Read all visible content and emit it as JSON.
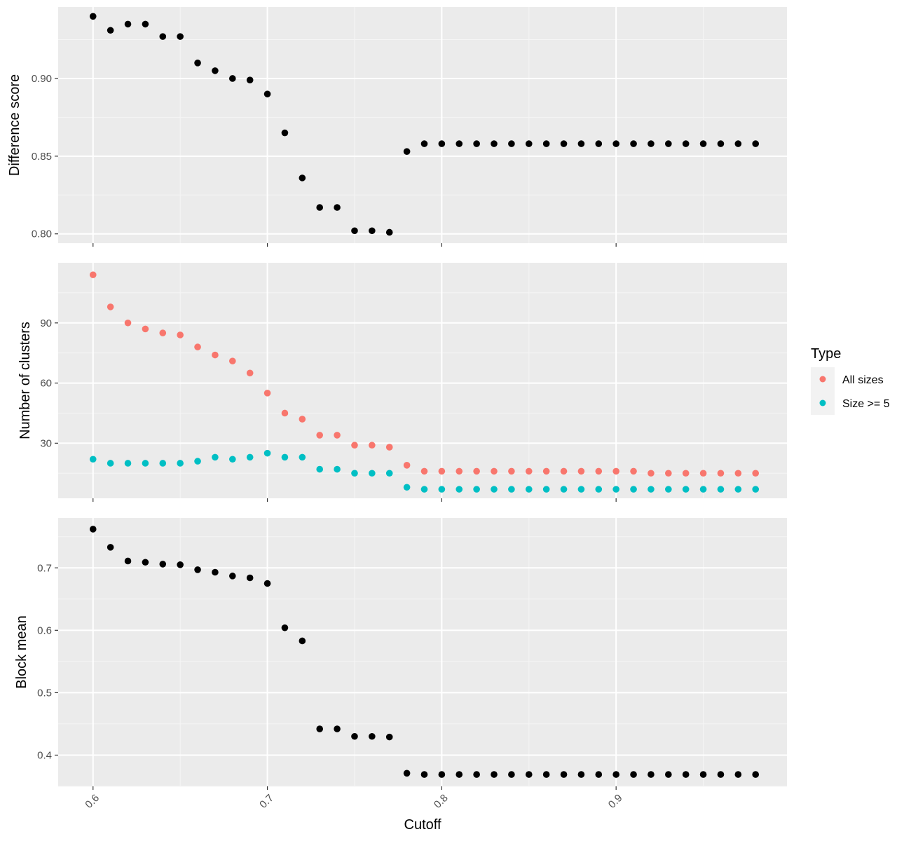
{
  "colors": {
    "panel_bg": "#EBEBEB",
    "grid_major": "#FFFFFF",
    "grid_minor": "#F5F5F5",
    "tick": "#333333",
    "all_sizes": "#F8766D",
    "size_ge5": "#00BFC4",
    "points": "#000000",
    "legend_key_bg": "#F2F2F2"
  },
  "legend": {
    "title": "Type",
    "placement": "right",
    "items": [
      {
        "label": "All sizes",
        "color": "#F8766D"
      },
      {
        "label": "Size >= 5",
        "color": "#00BFC4"
      }
    ]
  },
  "chart_data": [
    {
      "type": "scatter",
      "panel": "top",
      "xlabel": "",
      "ylabel": "Difference score",
      "xlim": [
        0.58,
        0.998
      ],
      "ylim": [
        0.794,
        0.946
      ],
      "yticks": [
        0.8,
        0.85,
        0.9
      ],
      "ytick_labels": [
        "0.80",
        "0.85",
        "0.90"
      ],
      "grid": true,
      "x": [
        0.6,
        0.61,
        0.62,
        0.63,
        0.64,
        0.65,
        0.66,
        0.67,
        0.68,
        0.69,
        0.7,
        0.71,
        0.72,
        0.73,
        0.74,
        0.75,
        0.76,
        0.77,
        0.78,
        0.79,
        0.8,
        0.81,
        0.82,
        0.83,
        0.84,
        0.85,
        0.86,
        0.87,
        0.88,
        0.89,
        0.9,
        0.91,
        0.92,
        0.93,
        0.94,
        0.95,
        0.96,
        0.97,
        0.98
      ],
      "series": [
        {
          "color": "#000000",
          "values": [
            0.94,
            0.931,
            0.935,
            0.935,
            0.927,
            0.927,
            0.91,
            0.905,
            0.9,
            0.899,
            0.89,
            0.865,
            0.836,
            0.817,
            0.817,
            0.802,
            0.802,
            0.801,
            0.853,
            0.858,
            0.858,
            0.858,
            0.858,
            0.858,
            0.858,
            0.858,
            0.858,
            0.858,
            0.858,
            0.858,
            0.858,
            0.858,
            0.858,
            0.858,
            0.858,
            0.858,
            0.858,
            0.858,
            0.858
          ]
        }
      ]
    },
    {
      "type": "scatter",
      "panel": "middle",
      "xlabel": "",
      "ylabel": "Number of clusters",
      "xlim": [
        0.58,
        0.998
      ],
      "ylim": [
        2.5,
        120
      ],
      "yticks": [
        30,
        60,
        90
      ],
      "ytick_labels": [
        "30",
        "60",
        "90"
      ],
      "grid": true,
      "x": [
        0.6,
        0.61,
        0.62,
        0.63,
        0.64,
        0.65,
        0.66,
        0.67,
        0.68,
        0.69,
        0.7,
        0.71,
        0.72,
        0.73,
        0.74,
        0.75,
        0.76,
        0.77,
        0.78,
        0.79,
        0.8,
        0.81,
        0.82,
        0.83,
        0.84,
        0.85,
        0.86,
        0.87,
        0.88,
        0.89,
        0.9,
        0.91,
        0.92,
        0.93,
        0.94,
        0.95,
        0.96,
        0.97,
        0.98
      ],
      "series": [
        {
          "name": "All sizes",
          "color": "#F8766D",
          "values": [
            114,
            98,
            90,
            87,
            85,
            84,
            78,
            74,
            71,
            65,
            55,
            45,
            42,
            34,
            34,
            29,
            29,
            28,
            19,
            16,
            16,
            16,
            16,
            16,
            16,
            16,
            16,
            16,
            16,
            16,
            16,
            16,
            15,
            15,
            15,
            15,
            15,
            15,
            15
          ]
        },
        {
          "name": "Size >= 5",
          "color": "#00BFC4",
          "values": [
            22,
            20,
            20,
            20,
            20,
            20,
            21,
            23,
            22,
            23,
            25,
            23,
            23,
            17,
            17,
            15,
            15,
            15,
            8,
            7,
            7,
            7,
            7,
            7,
            7,
            7,
            7,
            7,
            7,
            7,
            7,
            7,
            7,
            7,
            7,
            7,
            7,
            7,
            7
          ]
        }
      ]
    },
    {
      "type": "scatter",
      "panel": "bottom",
      "xlabel": "Cutoff",
      "ylabel": "Block mean",
      "xlim": [
        0.58,
        0.998
      ],
      "ylim": [
        0.35,
        0.78
      ],
      "yticks": [
        0.4,
        0.5,
        0.6,
        0.7
      ],
      "ytick_labels": [
        "0.4",
        "0.5",
        "0.6",
        "0.7"
      ],
      "xticks": [
        0.6,
        0.7,
        0.8,
        0.9
      ],
      "xtick_labels": [
        "0.6",
        "0.7",
        "0.8",
        "0.9"
      ],
      "grid": true,
      "x": [
        0.6,
        0.61,
        0.62,
        0.63,
        0.64,
        0.65,
        0.66,
        0.67,
        0.68,
        0.69,
        0.7,
        0.71,
        0.72,
        0.73,
        0.74,
        0.75,
        0.76,
        0.77,
        0.78,
        0.79,
        0.8,
        0.81,
        0.82,
        0.83,
        0.84,
        0.85,
        0.86,
        0.87,
        0.88,
        0.89,
        0.9,
        0.91,
        0.92,
        0.93,
        0.94,
        0.95,
        0.96,
        0.97,
        0.98
      ],
      "series": [
        {
          "color": "#000000",
          "values": [
            0.762,
            0.733,
            0.711,
            0.709,
            0.706,
            0.705,
            0.697,
            0.693,
            0.687,
            0.684,
            0.675,
            0.604,
            0.583,
            0.442,
            0.442,
            0.43,
            0.43,
            0.429,
            0.371,
            0.369,
            0.369,
            0.369,
            0.369,
            0.369,
            0.369,
            0.369,
            0.369,
            0.369,
            0.369,
            0.369,
            0.369,
            0.369,
            0.369,
            0.369,
            0.369,
            0.369,
            0.369,
            0.369,
            0.369
          ]
        }
      ]
    }
  ]
}
